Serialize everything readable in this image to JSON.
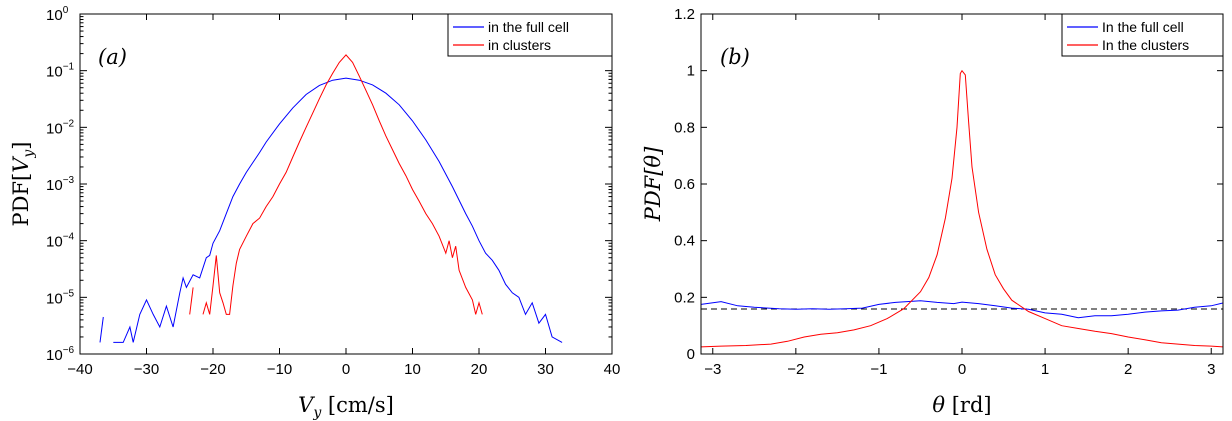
{
  "chart_data": [
    {
      "type": "line",
      "panel_label": "(a)",
      "xlabel_var": "V",
      "xlabel_sub": "y",
      "xlabel_unit": " [cm/s]",
      "ylabel_pre": "PDF[",
      "ylabel_var": "V",
      "ylabel_sub": "y",
      "ylabel_post": "]",
      "xlim": [
        -40,
        40
      ],
      "ylim": [
        1e-06,
        1
      ],
      "yscale": "log",
      "grid": false,
      "legend_placement": "top-right",
      "x_ticks": [
        "−40",
        "−30",
        "−20",
        "−10",
        "0",
        "10",
        "20",
        "30",
        "40"
      ],
      "x_tick_values": [
        -40,
        -30,
        -20,
        -10,
        0,
        10,
        20,
        30,
        40
      ],
      "y_tick_exponents": [
        "−6",
        "−5",
        "−4",
        "−3",
        "−2",
        "−1",
        "0"
      ],
      "y_tick_base": "10",
      "series": [
        {
          "name": "in the full cell",
          "color": "#0000ff",
          "segments": [
            [
              [
                -37,
                1.6e-06
              ],
              [
                -36.5,
                4.5e-06
              ]
            ],
            [
              [
                -35,
                1.6e-06
              ],
              [
                -33.5,
                1.6e-06
              ],
              [
                -32.5,
                3e-06
              ],
              [
                -32,
                1.6e-06
              ],
              [
                -31,
                5e-06
              ],
              [
                -30,
                9e-06
              ],
              [
                -29,
                5e-06
              ],
              [
                -28,
                3e-06
              ],
              [
                -27,
                7e-06
              ],
              [
                -26,
                3e-06
              ],
              [
                -25,
                1.2e-05
              ],
              [
                -24.5,
                2.2e-05
              ],
              [
                -24,
                1.5e-05
              ],
              [
                -23,
                2.5e-05
              ],
              [
                -22,
                2.2e-05
              ],
              [
                -21,
                5e-05
              ],
              [
                -20.5,
                5.5e-05
              ],
              [
                -20,
                9e-05
              ],
              [
                -19,
                0.00015
              ],
              [
                -18,
                0.0003
              ],
              [
                -17,
                0.0006
              ],
              [
                -16,
                0.001
              ],
              [
                -15,
                0.0016
              ],
              [
                -14,
                0.0024
              ],
              [
                -13,
                0.0036
              ],
              [
                -12,
                0.0055
              ],
              [
                -10,
                0.0115
              ],
              [
                -8,
                0.022
              ],
              [
                -6,
                0.038
              ],
              [
                -4,
                0.055
              ],
              [
                -2,
                0.068
              ],
              [
                0,
                0.074
              ],
              [
                2,
                0.068
              ],
              [
                4,
                0.056
              ],
              [
                6,
                0.04
              ],
              [
                8,
                0.025
              ],
              [
                10,
                0.013
              ],
              [
                12,
                0.006
              ],
              [
                14,
                0.0025
              ],
              [
                16,
                0.0009
              ],
              [
                18,
                0.0003
              ],
              [
                19,
                0.00018
              ],
              [
                20,
                0.0001
              ],
              [
                21,
                6e-05
              ],
              [
                22,
                4.5e-05
              ],
              [
                23,
                3e-05
              ],
              [
                24,
                1.7e-05
              ],
              [
                25,
                1.2e-05
              ],
              [
                26,
                1e-05
              ],
              [
                27,
                5e-06
              ],
              [
                28,
                8e-06
              ],
              [
                29,
                3.5e-06
              ],
              [
                30,
                5e-06
              ],
              [
                31,
                2e-06
              ],
              [
                32.5,
                1.6e-06
              ]
            ]
          ]
        },
        {
          "name": "in clusters",
          "color": "#ff0000",
          "segments": [
            [
              [
                -23.5,
                5e-06
              ],
              [
                -23,
                1.5e-05
              ]
            ],
            [
              [
                -21.5,
                5e-06
              ],
              [
                -21,
                8e-06
              ],
              [
                -20.5,
                5e-06
              ],
              [
                -20,
                1.6e-05
              ],
              [
                -19.5,
                5.5e-05
              ],
              [
                -19,
                1.2e-05
              ],
              [
                -18.5,
                8e-06
              ],
              [
                -18,
                5e-06
              ],
              [
                -17.5,
                5e-06
              ],
              [
                -17,
                1.6e-05
              ],
              [
                -16.5,
                4e-05
              ],
              [
                -16,
                7e-05
              ],
              [
                -15,
                0.00012
              ],
              [
                -14,
                0.0002
              ],
              [
                -13,
                0.00025
              ],
              [
                -12,
                0.0004
              ],
              [
                -11,
                0.0006
              ],
              [
                -10,
                0.001
              ],
              [
                -9,
                0.0016
              ],
              [
                -8,
                0.003
              ],
              [
                -7,
                0.0055
              ],
              [
                -6,
                0.01
              ],
              [
                -5,
                0.018
              ],
              [
                -4,
                0.032
              ],
              [
                -3,
                0.056
              ],
              [
                -2,
                0.09
              ],
              [
                -1,
                0.14
              ],
              [
                0,
                0.19
              ],
              [
                1,
                0.14
              ],
              [
                2,
                0.08
              ],
              [
                3,
                0.045
              ],
              [
                4,
                0.025
              ],
              [
                5,
                0.013
              ],
              [
                6,
                0.007
              ],
              [
                7,
                0.004
              ],
              [
                8,
                0.0023
              ],
              [
                9,
                0.0014
              ],
              [
                10,
                0.0008
              ],
              [
                11,
                0.0005
              ],
              [
                12,
                0.0003
              ],
              [
                13,
                0.0002
              ],
              [
                14,
                0.00012
              ],
              [
                15,
                6e-05
              ],
              [
                15.5,
                0.0001
              ],
              [
                16,
                5e-05
              ],
              [
                16.5,
                8e-05
              ],
              [
                17,
                3e-05
              ],
              [
                18,
                1.5e-05
              ],
              [
                19,
                9e-06
              ],
              [
                19.5,
                5e-06
              ],
              [
                20,
                8e-06
              ],
              [
                20.5,
                5e-06
              ]
            ]
          ]
        }
      ]
    },
    {
      "type": "line",
      "panel_label": "(b)",
      "xlabel_var": "θ",
      "xlabel_unit": " [rd]",
      "ylabel_pre": "PDF[",
      "ylabel_var": "θ",
      "ylabel_post": "]",
      "xlim": [
        -3.1416,
        3.1416
      ],
      "ylim": [
        0,
        1.2
      ],
      "grid": false,
      "legend_placement": "top-right",
      "x_ticks": [
        "−3",
        "−2",
        "−1",
        "0",
        "1",
        "2",
        "3"
      ],
      "x_tick_values": [
        -3,
        -2,
        -1,
        0,
        1,
        2,
        3
      ],
      "y_ticks": [
        "0",
        "0.2",
        "0.4",
        "0.6",
        "0.8",
        "1",
        "1.2"
      ],
      "y_tick_values": [
        0,
        0.2,
        0.4,
        0.6,
        0.8,
        1,
        1.2
      ],
      "reference_line": {
        "y": 0.159,
        "style": "dashed",
        "color": "#000000"
      },
      "series": [
        {
          "name": "In the full cell",
          "color": "#0000ff",
          "segments": [
            [
              [
                -3.14,
                0.175
              ],
              [
                -2.9,
                0.185
              ],
              [
                -2.7,
                0.17
              ],
              [
                -2.5,
                0.165
              ],
              [
                -2.2,
                0.16
              ],
              [
                -2.0,
                0.158
              ],
              [
                -1.8,
                0.16
              ],
              [
                -1.6,
                0.158
              ],
              [
                -1.4,
                0.16
              ],
              [
                -1.2,
                0.162
              ],
              [
                -1.0,
                0.175
              ],
              [
                -0.8,
                0.182
              ],
              [
                -0.5,
                0.188
              ],
              [
                -0.3,
                0.182
              ],
              [
                -0.1,
                0.178
              ],
              [
                0.0,
                0.183
              ],
              [
                0.2,
                0.178
              ],
              [
                0.4,
                0.17
              ],
              [
                0.6,
                0.162
              ],
              [
                0.8,
                0.158
              ],
              [
                1.0,
                0.145
              ],
              [
                1.2,
                0.14
              ],
              [
                1.4,
                0.128
              ],
              [
                1.6,
                0.135
              ],
              [
                1.8,
                0.135
              ],
              [
                2.0,
                0.14
              ],
              [
                2.2,
                0.148
              ],
              [
                2.4,
                0.152
              ],
              [
                2.6,
                0.155
              ],
              [
                2.8,
                0.165
              ],
              [
                3.0,
                0.17
              ],
              [
                3.14,
                0.18
              ]
            ]
          ]
        },
        {
          "name": "In the clusters",
          "color": "#ff0000",
          "segments": [
            [
              [
                -3.14,
                0.025
              ],
              [
                -2.9,
                0.028
              ],
              [
                -2.6,
                0.03
              ],
              [
                -2.3,
                0.035
              ],
              [
                -2.1,
                0.045
              ],
              [
                -1.9,
                0.06
              ],
              [
                -1.7,
                0.07
              ],
              [
                -1.5,
                0.075
              ],
              [
                -1.3,
                0.085
              ],
              [
                -1.1,
                0.1
              ],
              [
                -0.9,
                0.125
              ],
              [
                -0.7,
                0.16
              ],
              [
                -0.5,
                0.22
              ],
              [
                -0.4,
                0.27
              ],
              [
                -0.3,
                0.35
              ],
              [
                -0.2,
                0.48
              ],
              [
                -0.12,
                0.62
              ],
              [
                -0.06,
                0.8
              ],
              [
                -0.02,
                0.99
              ],
              [
                0.0,
                1.0
              ],
              [
                0.04,
                0.985
              ],
              [
                0.08,
                0.82
              ],
              [
                0.12,
                0.66
              ],
              [
                0.2,
                0.5
              ],
              [
                0.3,
                0.37
              ],
              [
                0.4,
                0.28
              ],
              [
                0.5,
                0.23
              ],
              [
                0.6,
                0.19
              ],
              [
                0.8,
                0.15
              ],
              [
                1.0,
                0.125
              ],
              [
                1.2,
                0.1
              ],
              [
                1.4,
                0.09
              ],
              [
                1.6,
                0.08
              ],
              [
                1.8,
                0.072
              ],
              [
                2.0,
                0.06
              ],
              [
                2.2,
                0.05
              ],
              [
                2.4,
                0.04
              ],
              [
                2.6,
                0.035
              ],
              [
                2.8,
                0.03
              ],
              [
                3.0,
                0.028
              ],
              [
                3.14,
                0.025
              ]
            ]
          ]
        }
      ]
    }
  ]
}
